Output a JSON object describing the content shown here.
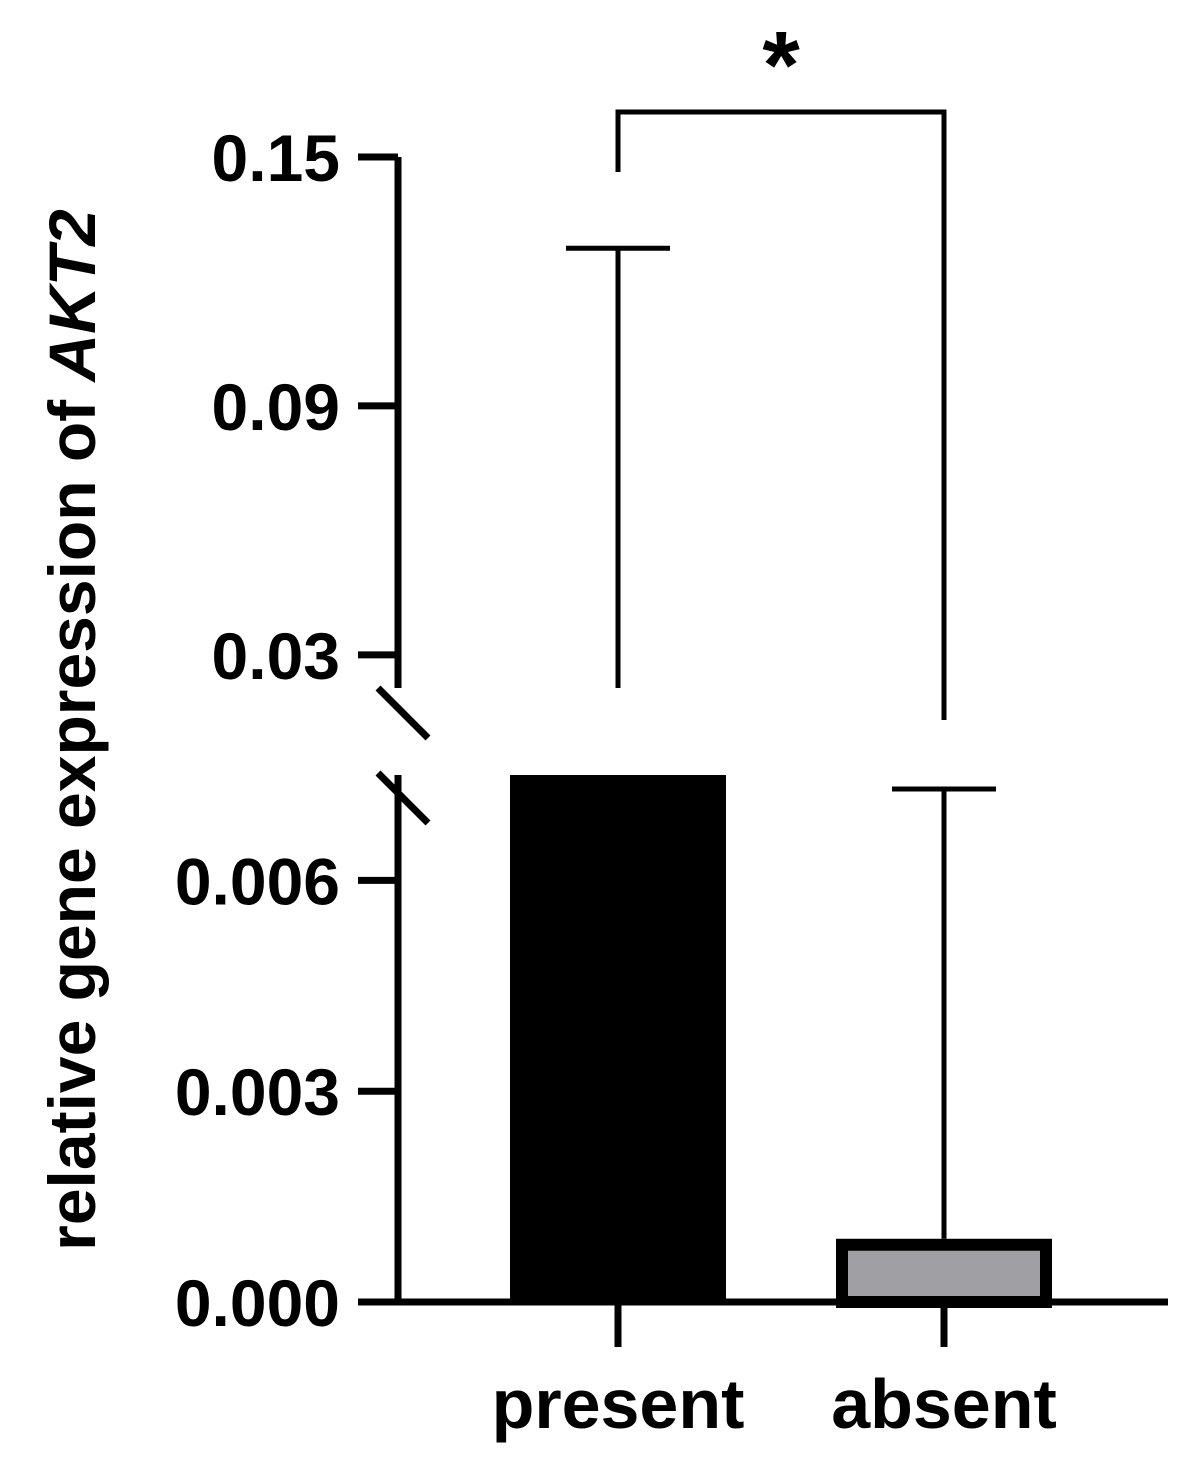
{
  "chart_data": {
    "type": "bar",
    "title": "",
    "xlabel": "",
    "ylabel": "relative gene expression of ",
    "ylabel_gene": "AKT2",
    "categories": [
      "present",
      "absent"
    ],
    "values": [
      0.022,
      0.0009
    ],
    "error_upper": [
      0.128,
      0.0073
    ],
    "bar_colors": [
      "#000000",
      "#a0a0a4"
    ],
    "bar_outline": "#000000",
    "axis_break": true,
    "segments": [
      {
        "range": [
          0,
          0.0075
        ],
        "ticks": [
          0,
          0.003,
          0.006
        ],
        "tick_labels": [
          "0.000",
          "0.003",
          "0.006"
        ]
      },
      {
        "range": [
          0.022,
          0.15
        ],
        "ticks": [
          0.03,
          0.09,
          0.15
        ],
        "tick_labels": [
          "0.03",
          "0.09",
          "0.15"
        ]
      }
    ],
    "significance": {
      "between": [
        "present",
        "absent"
      ],
      "label": "*"
    },
    "grid": false,
    "legend": "none"
  }
}
